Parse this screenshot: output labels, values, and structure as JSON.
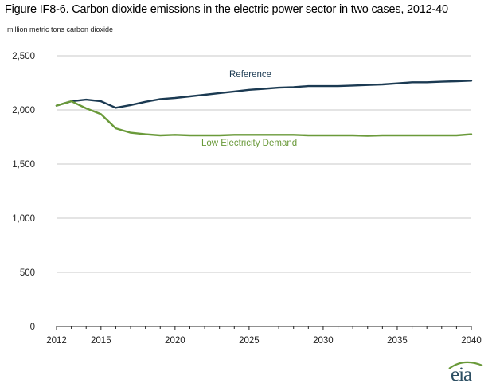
{
  "title": "Figure IF8-6. Carbon dioxide emissions in the electric power sector in two cases, 2012-40",
  "y_unit_label": "million metric tons carbon dioxide",
  "logo_text": "eia",
  "colors": {
    "reference": "#1b3a52",
    "low_demand": "#6a9a3a",
    "grid": "#c8c8c8",
    "axis": "#222222"
  },
  "chart_data": {
    "type": "line",
    "title": "Figure IF8-6. Carbon dioxide emissions in the electric power sector in two cases, 2012-40",
    "xlabel": "",
    "ylabel": "million metric tons carbon dioxide",
    "xlim": [
      2012,
      2040
    ],
    "ylim": [
      0,
      2500
    ],
    "grid": true,
    "x_ticks": [
      2012,
      2015,
      2020,
      2025,
      2030,
      2035,
      2040
    ],
    "y_ticks": [
      0,
      500,
      1000,
      1500,
      2000,
      2500
    ],
    "y_tick_labels": [
      "0",
      "500",
      "1,000",
      "1,500",
      "2,000",
      "2,500"
    ],
    "x": [
      2012,
      2013,
      2014,
      2015,
      2016,
      2017,
      2018,
      2019,
      2020,
      2021,
      2022,
      2023,
      2024,
      2025,
      2026,
      2027,
      2028,
      2029,
      2030,
      2031,
      2032,
      2033,
      2034,
      2035,
      2036,
      2037,
      2038,
      2039,
      2040
    ],
    "series": [
      {
        "name": "Reference",
        "color": "#1b3a52",
        "values": [
          2040,
          2080,
          2095,
          2080,
          2020,
          2045,
          2075,
          2100,
          2110,
          2125,
          2140,
          2155,
          2170,
          2185,
          2195,
          2205,
          2210,
          2220,
          2220,
          2220,
          2225,
          2230,
          2235,
          2245,
          2255,
          2255,
          2260,
          2265,
          2270
        ]
      },
      {
        "name": "Low Electricity Demand",
        "color": "#6a9a3a",
        "values": [
          2040,
          2080,
          2015,
          1960,
          1830,
          1790,
          1775,
          1765,
          1770,
          1765,
          1765,
          1765,
          1770,
          1770,
          1770,
          1770,
          1770,
          1765,
          1765,
          1765,
          1765,
          1760,
          1765,
          1765,
          1765,
          1765,
          1765,
          1765,
          1775
        ]
      }
    ]
  }
}
